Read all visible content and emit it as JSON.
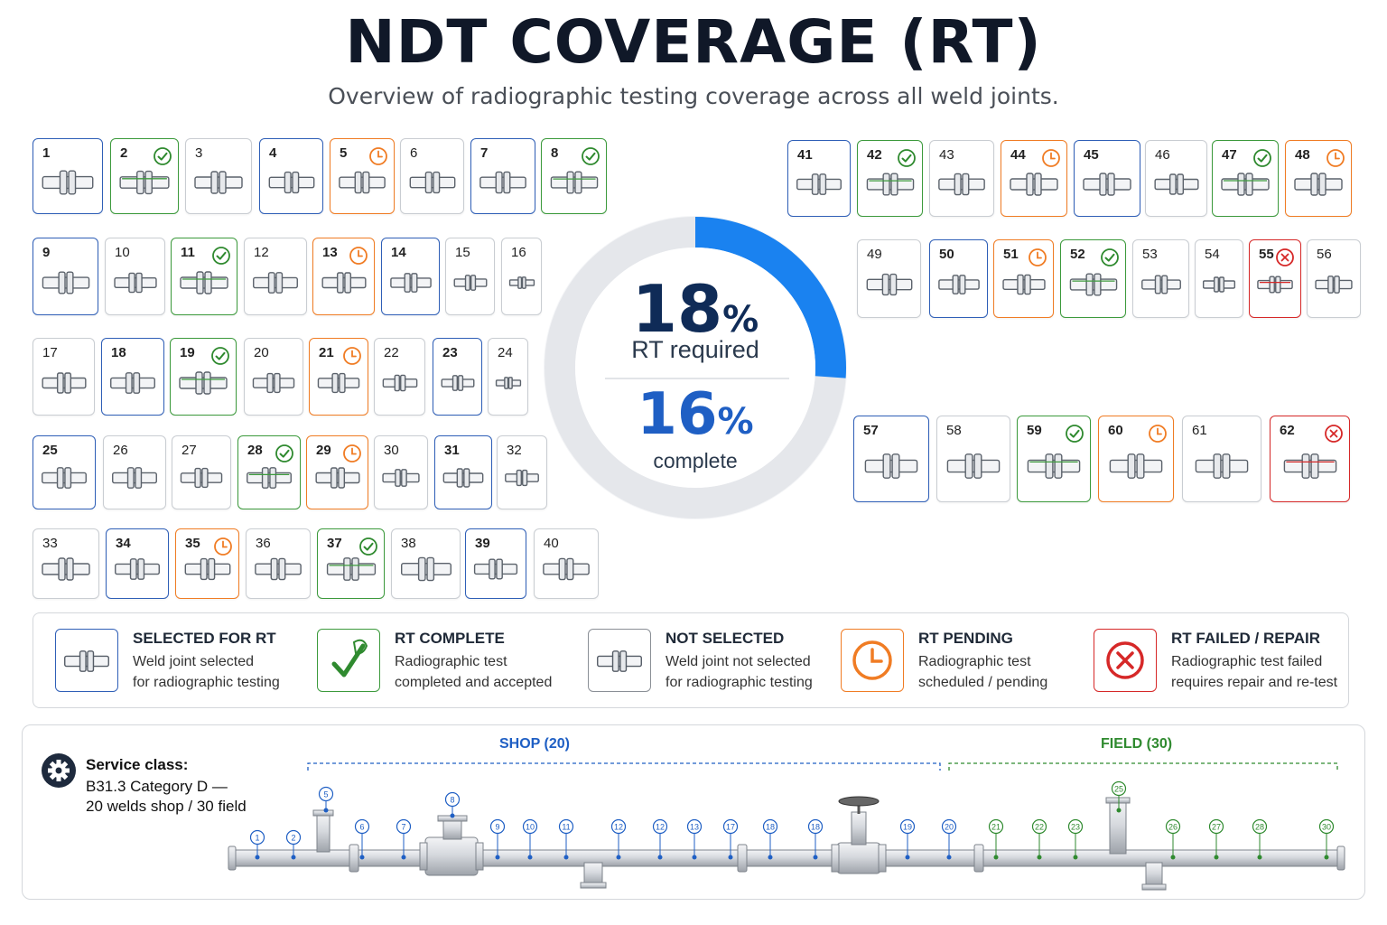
{
  "header": {
    "title": "NDT COVERAGE (RT)",
    "subtitle": "Overview of radiographic testing coverage across all weld joints."
  },
  "colors": {
    "selected": "#2f5fb7",
    "complete": "#3c9a3c",
    "not_selected": "#c9cdd2",
    "pending": "#f07c24",
    "failed": "#d62828",
    "ring_fill": "#1a82f0",
    "ring_track": "#e5e7eb"
  },
  "joints": [
    {
      "n": "1",
      "s": "selected"
    },
    {
      "n": "2",
      "s": "complete"
    },
    {
      "n": "3",
      "s": "none"
    },
    {
      "n": "4",
      "s": "selected"
    },
    {
      "n": "5",
      "s": "pending"
    },
    {
      "n": "6",
      "s": "none"
    },
    {
      "n": "7",
      "s": "selected"
    },
    {
      "n": "8",
      "s": "complete"
    },
    {
      "n": "9",
      "s": "selected"
    },
    {
      "n": "10",
      "s": "none"
    },
    {
      "n": "11",
      "s": "complete"
    },
    {
      "n": "12",
      "s": "none"
    },
    {
      "n": "13",
      "s": "pending"
    },
    {
      "n": "14",
      "s": "selected"
    },
    {
      "n": "15",
      "s": "none"
    },
    {
      "n": "16",
      "s": "none"
    },
    {
      "n": "17",
      "s": "none"
    },
    {
      "n": "18",
      "s": "selected"
    },
    {
      "n": "19",
      "s": "complete"
    },
    {
      "n": "20",
      "s": "none"
    },
    {
      "n": "21",
      "s": "pending"
    },
    {
      "n": "22",
      "s": "none"
    },
    {
      "n": "23",
      "s": "selected"
    },
    {
      "n": "24",
      "s": "none"
    },
    {
      "n": "25",
      "s": "selected"
    },
    {
      "n": "26",
      "s": "none"
    },
    {
      "n": "27",
      "s": "none"
    },
    {
      "n": "28",
      "s": "complete"
    },
    {
      "n": "29",
      "s": "pending"
    },
    {
      "n": "30",
      "s": "none"
    },
    {
      "n": "31",
      "s": "selected"
    },
    {
      "n": "32",
      "s": "none"
    },
    {
      "n": "33",
      "s": "none"
    },
    {
      "n": "34",
      "s": "selected"
    },
    {
      "n": "35",
      "s": "pending"
    },
    {
      "n": "36",
      "s": "none"
    },
    {
      "n": "37",
      "s": "complete"
    },
    {
      "n": "38",
      "s": "none"
    },
    {
      "n": "39",
      "s": "selected"
    },
    {
      "n": "40",
      "s": "none"
    },
    {
      "n": "41",
      "s": "selected"
    },
    {
      "n": "42",
      "s": "complete"
    },
    {
      "n": "43",
      "s": "none"
    },
    {
      "n": "44",
      "s": "pending"
    },
    {
      "n": "45",
      "s": "selected"
    },
    {
      "n": "46",
      "s": "none"
    },
    {
      "n": "47",
      "s": "complete"
    },
    {
      "n": "48",
      "s": "pending"
    },
    {
      "n": "49",
      "s": "none"
    },
    {
      "n": "50",
      "s": "selected"
    },
    {
      "n": "51",
      "s": "pending"
    },
    {
      "n": "52",
      "s": "complete"
    },
    {
      "n": "53",
      "s": "none"
    },
    {
      "n": "54",
      "s": "none"
    },
    {
      "n": "55",
      "s": "failed"
    },
    {
      "n": "56",
      "s": "none"
    },
    {
      "n": "57",
      "s": "selected"
    },
    {
      "n": "58",
      "s": "none"
    },
    {
      "n": "59",
      "s": "complete"
    },
    {
      "n": "60",
      "s": "pending"
    },
    {
      "n": "61",
      "s": "none"
    },
    {
      "n": "62",
      "s": "failed"
    }
  ],
  "summary": {
    "rt_required_value": "18",
    "rt_required_pct_sign": "%",
    "rt_required_label": "RT required",
    "complete_value": "16",
    "complete_pct_sign": "%",
    "complete_label": "complete",
    "ring_fraction": 0.18
  },
  "legend": [
    {
      "key": "selected",
      "title": "SELECTED FOR RT",
      "line1": "Weld joint selected",
      "line2": "for radiographic testing",
      "icon": "weld-icon"
    },
    {
      "key": "complete",
      "title": "RT COMPLETE",
      "line1": "Radiographic test",
      "line2": "completed and accepted",
      "icon": "check-icon"
    },
    {
      "key": "none",
      "title": "NOT SELECTED",
      "line1": "Weld joint not selected",
      "line2": "for radiographic testing",
      "icon": "weld-icon"
    },
    {
      "key": "pending",
      "title": "RT PENDING",
      "line1": "Radiographic test",
      "line2": "scheduled / pending",
      "icon": "clock-icon"
    },
    {
      "key": "failed",
      "title": "RT FAILED / REPAIR",
      "line1": "Radiographic test failed",
      "line2": "requires repair and re-test",
      "icon": "x-circle-icon"
    }
  ],
  "service": {
    "label": "Service class:",
    "line1": "B31.3 Category D —",
    "line2": "20 welds shop / 30 field",
    "icon": "gear-icon"
  },
  "isometric": {
    "shop_label": "SHOP (20)",
    "field_label": "FIELD (30)",
    "shop_markers": [
      "1",
      "2",
      "5",
      "6",
      "7",
      "8",
      "9",
      "10",
      "11",
      "12",
      "12",
      "13",
      "17",
      "18",
      "18",
      "19",
      "20"
    ],
    "field_markers": [
      "21",
      "22",
      "23",
      "25",
      "26",
      "27",
      "28",
      "30"
    ]
  }
}
